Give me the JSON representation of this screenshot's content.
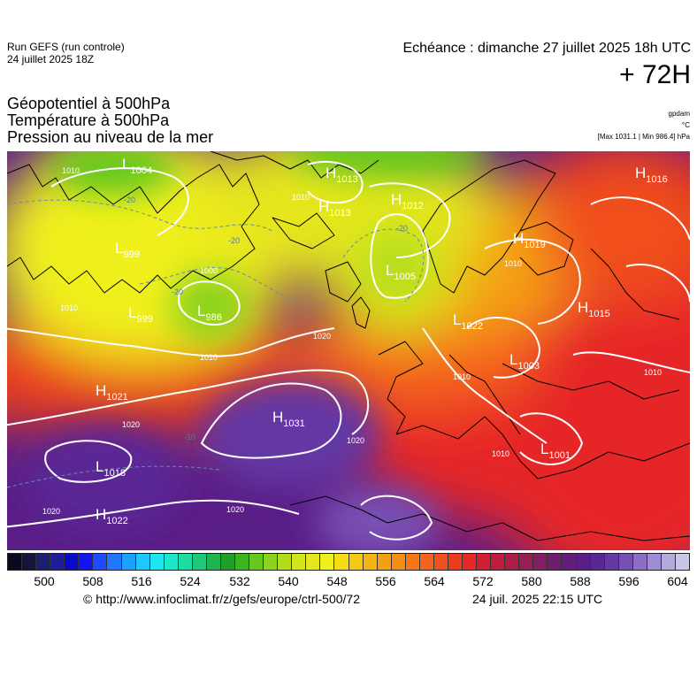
{
  "header": {
    "run_line1": "Run GEFS (run controle)",
    "run_line2": "24 juillet 2025 18Z",
    "echeance": "Echéance : dimanche 27 juillet 2025 18h UTC",
    "lead_time": "+ 72H"
  },
  "titles": {
    "line1": "Géopotentiel à 500hPa",
    "line2": "Température à 500hPa",
    "line3": "Pression au niveau de la mer"
  },
  "units": {
    "geopotential": "gpdam",
    "temperature": "°C",
    "pressure": "[Max 1031.1 | Min 986.4] hPa"
  },
  "colors": {
    "scale": [
      "#0a0a1e",
      "#14143c",
      "#1e1e6e",
      "#1e1e9a",
      "#0a0ac8",
      "#1414f0",
      "#1e4bff",
      "#1e78ff",
      "#1ea0ff",
      "#1ec8ff",
      "#1ee6f0",
      "#1ee6c8",
      "#1edca0",
      "#1ec878",
      "#1eb450",
      "#1ea028",
      "#3cb41e",
      "#64c81e",
      "#8cd21e",
      "#b4dc1e",
      "#d2e61e",
      "#e6e61e",
      "#f0f01e",
      "#f5dc14",
      "#f5c814",
      "#f5b414",
      "#f5a014",
      "#f58c14",
      "#f57814",
      "#f5641e",
      "#f0501e",
      "#eb3c1e",
      "#e62828",
      "#d21e32",
      "#be1e3c",
      "#aa1e46",
      "#961e55",
      "#821e64",
      "#6e1e6e",
      "#641e78",
      "#5a1e87",
      "#5a2896",
      "#6438a5",
      "#7850b4",
      "#8c6ec3",
      "#a08cd2",
      "#b4aadc",
      "#c8c8e6"
    ],
    "contour": "#ffffff",
    "coastline": "#000000"
  },
  "legend": {
    "ticks": [
      "500",
      "508",
      "516",
      "524",
      "532",
      "540",
      "548",
      "556",
      "564",
      "572",
      "580",
      "588",
      "596",
      "604"
    ]
  },
  "systems": [
    {
      "type": "L",
      "value": "1004"
    },
    {
      "type": "H",
      "value": "1013"
    },
    {
      "type": "H",
      "value": "1013"
    },
    {
      "type": "H",
      "value": "1012"
    },
    {
      "type": "H",
      "value": "1016"
    },
    {
      "type": "L",
      "value": "999"
    },
    {
      "type": "L",
      "value": "1005"
    },
    {
      "type": "H",
      "value": "1019"
    },
    {
      "type": "L",
      "value": "986"
    },
    {
      "type": "L",
      "value": "999"
    },
    {
      "type": "L",
      "value": "1022"
    },
    {
      "type": "H",
      "value": "1015"
    },
    {
      "type": "L",
      "value": "1003"
    },
    {
      "type": "H",
      "value": "1021"
    },
    {
      "type": "H",
      "value": "1031"
    },
    {
      "type": "L",
      "value": "1001"
    },
    {
      "type": "L",
      "value": "1018"
    },
    {
      "type": "H",
      "value": "1022"
    }
  ],
  "isobar_labels": [
    "1010",
    "1010",
    "1010",
    "1000",
    "1020",
    "1010",
    "1020",
    "1010",
    "1020",
    "1010",
    "1020",
    "1020",
    "1010",
    "1010"
  ],
  "temp_labels": [
    "-20",
    "-20",
    "-20",
    "-20",
    "-10"
  ],
  "footer": {
    "credit": "© http://www.infoclimat.fr/z/gefs/europe/ctrl-500/72",
    "timestamp": "24 juil. 2025 22:15 UTC"
  }
}
